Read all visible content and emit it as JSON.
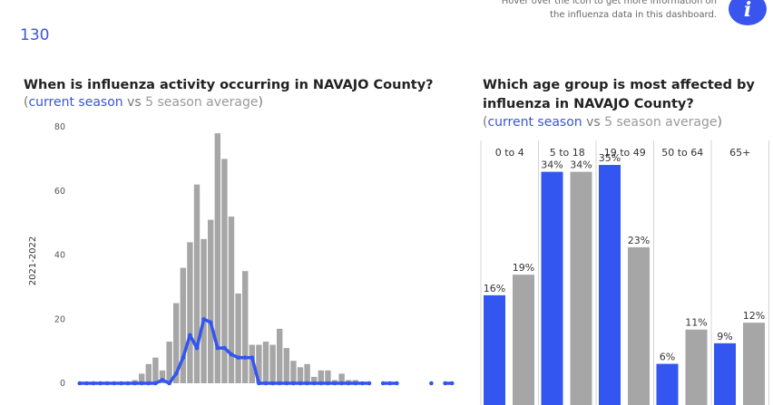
{
  "header": {
    "metric_value": "130",
    "info_text_line1": "Hover over the icon to get more information on",
    "info_text_line2": "the influenza data in this dashboard.",
    "info_icon": "info-icon"
  },
  "colors": {
    "current": "#3355f0",
    "average": "#a6a6a6"
  },
  "chart_data": [
    {
      "type": "bar",
      "title": "When is influenza activity occurring in NAVAJO County?",
      "subtitle": {
        "open": "(",
        "current": "current season",
        "vs": " vs ",
        "average": "5 season average",
        "close": ")"
      },
      "ylabel": "2021-2022",
      "ylim": [
        0,
        80
      ],
      "y_ticks": [
        "0",
        "20",
        "40",
        "60",
        "80"
      ],
      "series": [
        {
          "name": "5 season average",
          "values": [
            0,
            0,
            0,
            0,
            0,
            0,
            0,
            0,
            1,
            3,
            6,
            8,
            4,
            13,
            25,
            36,
            44,
            62,
            45,
            51,
            78,
            70,
            52,
            28,
            35,
            12,
            12,
            13,
            12,
            17,
            11,
            7,
            5,
            6,
            2,
            4,
            4,
            1,
            3,
            1,
            1,
            0
          ]
        },
        {
          "name": "current season",
          "values": [
            0,
            0,
            0,
            0,
            0,
            0,
            0,
            0,
            0,
            0,
            0,
            0,
            1,
            0,
            3,
            8,
            15,
            11,
            20,
            19,
            11,
            11,
            9,
            8,
            8,
            8,
            0,
            0,
            0,
            0,
            0,
            0,
            0,
            0,
            0,
            0,
            0,
            0,
            0,
            0,
            0,
            0,
            0,
            null,
            0,
            0,
            0,
            null,
            null,
            null,
            null,
            0,
            null,
            0,
            0
          ]
        }
      ]
    },
    {
      "type": "bar",
      "title_line1": "Which age group is most affected by",
      "title_line2": "influenza in NAVAJO County?",
      "subtitle": {
        "open": "(",
        "current": "current season",
        "vs": " vs ",
        "average": "5 season average",
        "close": ")"
      },
      "categories": [
        "0 to 4",
        "5 to 18",
        "19 to 49",
        "50 to 64",
        "65+"
      ],
      "series": [
        {
          "name": "current season",
          "values": [
            16,
            34,
            35,
            6,
            9
          ],
          "labels": [
            "16%",
            "34%",
            "35%",
            "6%",
            "9%"
          ]
        },
        {
          "name": "5 season average",
          "values": [
            19,
            34,
            23,
            11,
            12
          ],
          "labels": [
            "19%",
            "34%",
            "23%",
            "11%",
            "12%"
          ]
        }
      ]
    }
  ]
}
